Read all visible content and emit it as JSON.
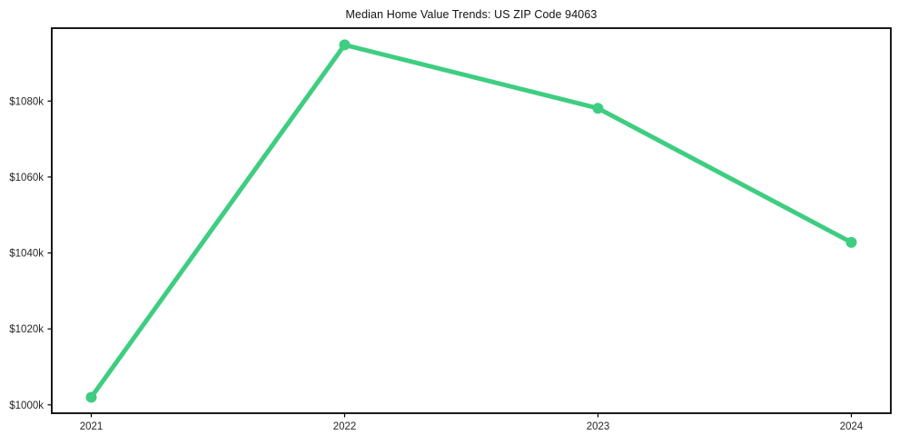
{
  "chart_data": {
    "type": "line",
    "title": "Median Home Value Trends: US ZIP Code 94063",
    "categories": [
      "2021",
      "2022",
      "2023",
      "2024"
    ],
    "series": [
      {
        "name": "Median Home Value",
        "values": [
          1002,
          1094.8,
          1078.1,
          1042.8
        ]
      }
    ],
    "value_unit": "thousand USD ($k)",
    "xlabel": "",
    "ylabel": "",
    "ylim": [
      997.8,
      1099.2
    ],
    "yticks": [
      1000,
      1020,
      1040,
      1060,
      1080
    ],
    "ytick_labels": [
      "$1000k",
      "$1020k",
      "$1040k",
      "$1060k",
      "$1080k"
    ],
    "xtick_labels": [
      "2021",
      "2022",
      "2023",
      "2024"
    ],
    "grid": false,
    "legend_position": "none",
    "line_color": "#3ecd81",
    "marker": "circle",
    "axis_color": "#000000",
    "tick_label_color": "#262626",
    "background_color": "#ffffff"
  }
}
